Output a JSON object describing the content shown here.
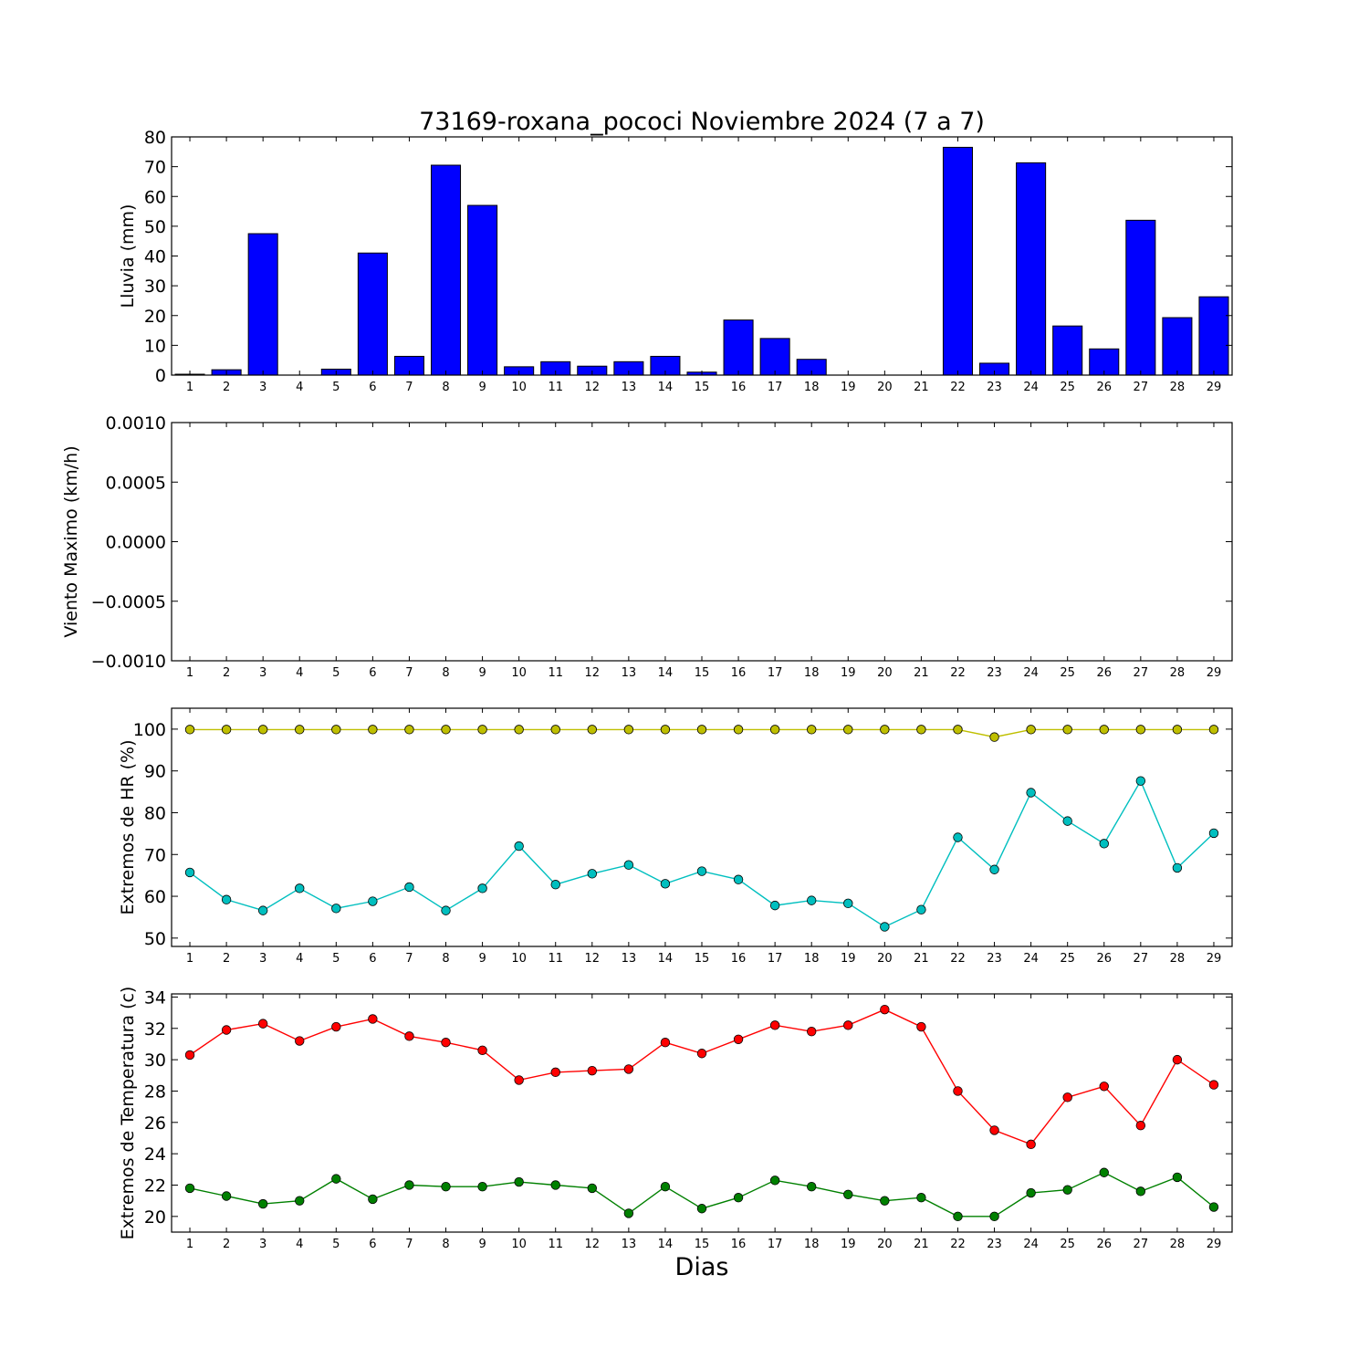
{
  "chart_data": [
    {
      "type": "bar",
      "title": "73169-roxana_pococi Noviembre 2024  (7 a 7)",
      "ylabel": "Lluvia (mm)",
      "ylim": [
        0,
        80
      ],
      "yticks": [
        "0",
        "10",
        "20",
        "30",
        "40",
        "50",
        "60",
        "70",
        "80"
      ],
      "categories": [
        "1",
        "2",
        "3",
        "4",
        "5",
        "6",
        "7",
        "8",
        "9",
        "10",
        "11",
        "12",
        "13",
        "14",
        "15",
        "16",
        "17",
        "18",
        "19",
        "20",
        "21",
        "22",
        "23",
        "24",
        "25",
        "26",
        "27",
        "28",
        "29"
      ],
      "values": [
        0.3,
        1.8,
        47.5,
        0.0,
        2.0,
        41.0,
        6.3,
        70.5,
        57.0,
        2.8,
        4.5,
        3.0,
        4.5,
        6.3,
        1.0,
        18.5,
        12.3,
        5.3,
        0.0,
        0.0,
        0.0,
        76.5,
        4.0,
        71.3,
        16.5,
        8.8,
        52.0,
        19.3,
        26.3
      ],
      "color": "#0000ff",
      "grid": false
    },
    {
      "type": "line",
      "ylabel": "Viento Maximo (km/h)",
      "ylim": [
        -0.001,
        0.001
      ],
      "yticks": [
        "0.0010",
        "0.0005",
        "0.0000",
        "−0.0005",
        "−0.0010"
      ],
      "categories": [
        "1",
        "2",
        "3",
        "4",
        "5",
        "6",
        "7",
        "8",
        "9",
        "10",
        "11",
        "12",
        "13",
        "14",
        "15",
        "16",
        "17",
        "18",
        "19",
        "20",
        "21",
        "22",
        "23",
        "24",
        "25",
        "26",
        "27",
        "28",
        "29"
      ],
      "series": [],
      "grid": false
    },
    {
      "type": "line",
      "ylabel": "Extremos de HR (%)",
      "ylim": [
        48,
        105
      ],
      "yticks": [
        "50",
        "60",
        "70",
        "80",
        "90",
        "100"
      ],
      "categories": [
        "1",
        "2",
        "3",
        "4",
        "5",
        "6",
        "7",
        "8",
        "9",
        "10",
        "11",
        "12",
        "13",
        "14",
        "15",
        "16",
        "17",
        "18",
        "19",
        "20",
        "21",
        "22",
        "23",
        "24",
        "25",
        "26",
        "27",
        "28",
        "29"
      ],
      "series": [
        {
          "color": "#bfbf00",
          "values": [
            99.9,
            99.9,
            99.9,
            99.9,
            99.9,
            99.9,
            99.9,
            99.9,
            99.9,
            99.9,
            99.9,
            99.9,
            99.9,
            99.9,
            99.9,
            99.9,
            99.9,
            99.9,
            99.9,
            99.9,
            99.9,
            99.9,
            98.1,
            99.9,
            99.9,
            99.9,
            99.9,
            99.9,
            99.9
          ]
        },
        {
          "color": "#00bfbf",
          "values": [
            65.7,
            59.2,
            56.6,
            61.9,
            57.1,
            58.8,
            62.2,
            56.6,
            61.9,
            72.0,
            62.8,
            65.4,
            67.5,
            63.0,
            66.0,
            64.0,
            57.8,
            59.0,
            58.3,
            52.7,
            56.8,
            74.1,
            66.4,
            84.8,
            78.0,
            72.6,
            87.6,
            66.8,
            75.1
          ]
        }
      ],
      "grid": false
    },
    {
      "type": "line",
      "ylabel": "Extremos de Temperatura (c)",
      "xlabel": "Dias",
      "ylim": [
        19,
        34.2
      ],
      "yticks": [
        "20",
        "22",
        "24",
        "26",
        "28",
        "30",
        "32",
        "34"
      ],
      "categories": [
        "1",
        "2",
        "3",
        "4",
        "5",
        "6",
        "7",
        "8",
        "9",
        "10",
        "11",
        "12",
        "13",
        "14",
        "15",
        "16",
        "17",
        "18",
        "19",
        "20",
        "21",
        "22",
        "23",
        "24",
        "25",
        "26",
        "27",
        "28",
        "29"
      ],
      "series": [
        {
          "color": "#ff0000",
          "values": [
            30.3,
            31.9,
            32.3,
            31.2,
            32.1,
            32.6,
            31.5,
            31.1,
            30.6,
            28.7,
            29.2,
            29.3,
            29.4,
            31.1,
            30.4,
            31.3,
            32.2,
            31.8,
            32.2,
            33.2,
            32.1,
            28.0,
            25.5,
            24.6,
            27.6,
            28.3,
            25.8,
            30.0,
            28.4
          ]
        },
        {
          "color": "#008000",
          "values": [
            21.8,
            21.3,
            20.8,
            21.0,
            22.4,
            21.1,
            22.0,
            21.9,
            21.9,
            22.2,
            22.0,
            21.8,
            20.2,
            21.9,
            20.5,
            21.2,
            22.3,
            21.9,
            21.4,
            21.0,
            21.2,
            20.0,
            20.0,
            21.5,
            21.7,
            22.8,
            21.6,
            22.5,
            20.6
          ]
        }
      ],
      "grid": false
    }
  ]
}
